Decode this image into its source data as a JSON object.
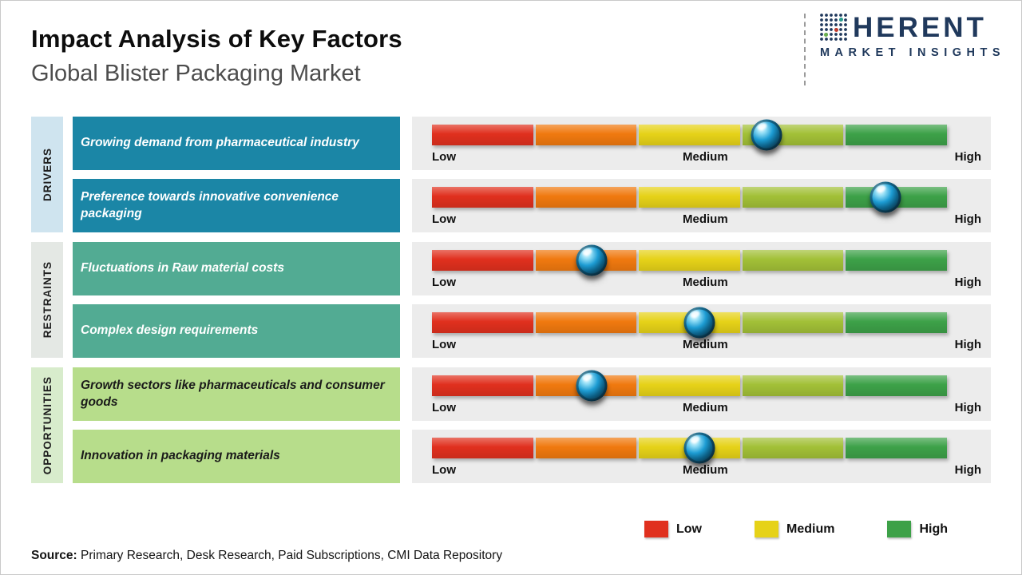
{
  "header": {
    "title": "Impact Analysis of Key Factors",
    "subtitle": "Global Blister Packaging Market"
  },
  "logo": {
    "word": "HERENT",
    "tagline": "MARKET INSIGHTS"
  },
  "scale": {
    "low": "Low",
    "medium": "Medium",
    "high": "High"
  },
  "bar": {
    "segments": [
      "#e0301e",
      "#f0790f",
      "#e6d218",
      "#a2c037",
      "#3da148"
    ],
    "track_bg": "#ececec"
  },
  "categories": [
    {
      "label": "DRIVERS",
      "color": "#cfe4ef",
      "factor_color": "#1b86a6",
      "text_color": "#ffffff",
      "factors": [
        {
          "text": "Growing demand from pharmaceutical industry",
          "impact": 0.65
        },
        {
          "text": "Preference towards innovative convenience packaging",
          "impact": 0.88
        }
      ]
    },
    {
      "label": "RESTRAINTS",
      "color": "#e4e8e4",
      "factor_color": "#52ab93",
      "text_color": "#ffffff",
      "factors": [
        {
          "text": "Fluctuations in Raw material costs",
          "impact": 0.31
        },
        {
          "text": "Complex design requirements",
          "impact": 0.52
        }
      ]
    },
    {
      "label": "OPPORTUNITIES",
      "color": "#d8eccc",
      "factor_color": "#b7dd8b",
      "text_color": "#1a1a1a",
      "factors": [
        {
          "text": "Growth sectors like pharmaceuticals and consumer goods",
          "impact": 0.31
        },
        {
          "text": "Innovation in packaging materials",
          "impact": 0.52
        }
      ]
    }
  ],
  "legend": [
    {
      "label": "Low",
      "color": "#e0301e"
    },
    {
      "label": "Medium",
      "color": "#e6d218"
    },
    {
      "label": "High",
      "color": "#3da148"
    }
  ],
  "source": {
    "label": "Source:",
    "text": " Primary Research, Desk Research, Paid Subscriptions, CMI Data Repository"
  },
  "chart_data": {
    "type": "bar",
    "title": "Impact Analysis of Key Factors",
    "subtitle": "Global Blister Packaging Market",
    "scale_labels": [
      "Low",
      "Medium",
      "High"
    ],
    "scale_range": [
      0,
      1
    ],
    "legend_position": "bottom-right",
    "series": [
      {
        "category": "DRIVERS",
        "factor": "Growing demand from pharmaceutical industry",
        "impact_position": 0.65,
        "impact_level": "Medium-High"
      },
      {
        "category": "DRIVERS",
        "factor": "Preference towards innovative convenience packaging",
        "impact_position": 0.88,
        "impact_level": "High"
      },
      {
        "category": "RESTRAINTS",
        "factor": "Fluctuations in Raw material costs",
        "impact_position": 0.31,
        "impact_level": "Low-Medium"
      },
      {
        "category": "RESTRAINTS",
        "factor": "Complex design requirements",
        "impact_position": 0.52,
        "impact_level": "Medium"
      },
      {
        "category": "OPPORTUNITIES",
        "factor": "Growth sectors like pharmaceuticals and consumer goods",
        "impact_position": 0.31,
        "impact_level": "Low-Medium"
      },
      {
        "category": "OPPORTUNITIES",
        "factor": "Innovation in packaging materials",
        "impact_position": 0.52,
        "impact_level": "Medium"
      }
    ]
  }
}
